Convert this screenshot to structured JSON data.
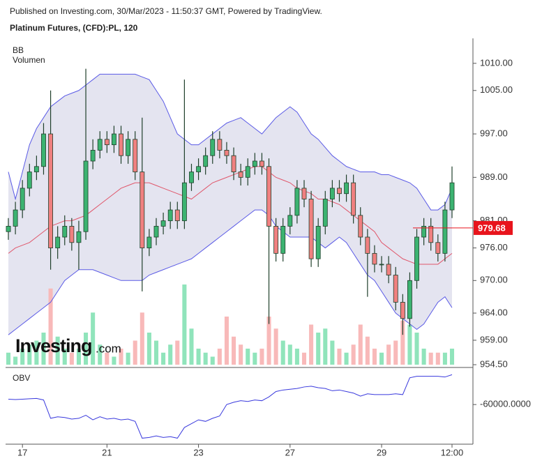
{
  "header": {
    "published": "Published on Investing.com, 30/Mar/2023 - 11:50:37 GMT, Powered by TradingView.",
    "symbol": "Platinum Futures, (CFD):PL, 120",
    "logo": "Investing",
    "logo_suffix": ".com"
  },
  "chart_data": [
    {
      "type": "candlestick",
      "indicator_labels": [
        "BB",
        "Volumen"
      ],
      "categories": [
        null,
        null,
        "17",
        null,
        null,
        null,
        null,
        null,
        null,
        null,
        null,
        null,
        null,
        null,
        "21",
        null,
        null,
        null,
        null,
        null,
        null,
        null,
        null,
        null,
        null,
        null,
        null,
        "23",
        null,
        null,
        null,
        null,
        null,
        null,
        null,
        null,
        null,
        null,
        null,
        null,
        "27",
        null,
        null,
        null,
        null,
        null,
        null,
        null,
        null,
        null,
        null,
        null,
        null,
        "29",
        null,
        null,
        null,
        null,
        null,
        null,
        null,
        null,
        null,
        "12:00"
      ],
      "open": [
        979,
        980,
        983,
        987,
        990,
        991,
        997,
        976,
        978,
        980,
        977,
        979,
        992,
        994,
        996,
        995,
        997,
        993,
        996,
        990,
        976,
        978,
        980,
        981,
        983,
        981,
        988,
        990,
        991,
        993,
        996,
        994,
        993,
        990,
        989,
        991,
        992,
        991,
        980,
        975,
        980,
        982,
        987,
        985,
        974,
        980,
        985,
        987,
        986,
        988,
        982,
        978,
        975,
        973,
        973,
        971,
        966,
        963,
        970,
        978,
        980,
        977,
        975,
        983
      ],
      "high": [
        981.5,
        984.5,
        988.5,
        991.5,
        993,
        999,
        1005,
        980,
        982,
        981.5,
        981,
        1009,
        996,
        997.5,
        997.5,
        998.5,
        998.5,
        997.5,
        997.5,
        1000,
        979.5,
        981.5,
        982.5,
        984.5,
        984.5,
        1007,
        991.5,
        992.5,
        994.5,
        997.5,
        997.5,
        995.5,
        994.5,
        991.5,
        992.5,
        993.5,
        993.5,
        992.5,
        981.5,
        981.5,
        983.5,
        988.5,
        988.5,
        986.5,
        981.5,
        986.5,
        988.5,
        988.5,
        989.5,
        989.5,
        983.5,
        979.5,
        976.5,
        974.5,
        974.5,
        972.5,
        967.5,
        971.5,
        979.5,
        981.5,
        981.5,
        978.5,
        984.5,
        991
      ],
      "low": [
        977.5,
        978.5,
        981.5,
        985.5,
        988.5,
        989.5,
        972,
        974,
        976.5,
        975.5,
        972,
        977.5,
        990.5,
        992.5,
        993.5,
        993.5,
        991.5,
        991.5,
        988.5,
        968,
        974.5,
        976.5,
        978.5,
        979.5,
        979.5,
        979.5,
        986.5,
        988.5,
        989.5,
        991.5,
        992.5,
        991.5,
        988.5,
        987.5,
        987.5,
        989.5,
        989.5,
        962,
        973.5,
        973.5,
        978.5,
        980.5,
        983.5,
        972.5,
        972.5,
        978.5,
        983.5,
        984.5,
        984.5,
        980.5,
        976.5,
        967,
        971.5,
        971.5,
        969.5,
        964.5,
        960,
        961.5,
        968.5,
        976.5,
        975.5,
        973.5,
        973.5,
        981.5
      ],
      "close": [
        980,
        983,
        987,
        990,
        991,
        997,
        976,
        978,
        980,
        977,
        979,
        992,
        994,
        996,
        995,
        997,
        993,
        996,
        990,
        976,
        978,
        980,
        981,
        983,
        981,
        988,
        990,
        991,
        993,
        996,
        994,
        993,
        990,
        989,
        991,
        992,
        991,
        980,
        975,
        980,
        982,
        987,
        985,
        974,
        980,
        985,
        987,
        986,
        988,
        982,
        978,
        975,
        973,
        973,
        971,
        966,
        963,
        970,
        978,
        980,
        977,
        975,
        983,
        988
      ],
      "volume": [
        15,
        10,
        20,
        25,
        30,
        40,
        95,
        35,
        20,
        15,
        20,
        40,
        65,
        25,
        15,
        10,
        20,
        15,
        30,
        65,
        40,
        30,
        15,
        25,
        30,
        100,
        45,
        20,
        15,
        10,
        20,
        60,
        35,
        25,
        20,
        15,
        20,
        60,
        45,
        30,
        25,
        20,
        15,
        50,
        40,
        45,
        30,
        20,
        15,
        25,
        50,
        35,
        20,
        15,
        25,
        30,
        55,
        50,
        40,
        20,
        15,
        15,
        15,
        20
      ],
      "bb_upper": [
        990,
        985,
        990,
        995,
        998,
        1000,
        1002,
        1003,
        1004,
        1004.5,
        1005,
        1006,
        1007,
        1008,
        1008,
        1008,
        1008,
        1008,
        1008,
        1007.5,
        1007,
        1005,
        1003,
        1000,
        997,
        996,
        995,
        995,
        996,
        997,
        998,
        999,
        999.5,
        1000,
        999,
        998,
        997,
        998.5,
        1000,
        1001,
        1002,
        1001,
        999,
        997,
        996,
        994.5,
        993,
        992,
        991,
        990.5,
        990,
        990,
        990,
        989.5,
        989.5,
        989,
        988.5,
        988,
        987,
        985,
        983,
        983,
        984,
        987
      ],
      "bb_middle": [
        975,
        976,
        976.5,
        977,
        978,
        979,
        980,
        980.5,
        981,
        981,
        981.5,
        982,
        983,
        984,
        985,
        986,
        987,
        987.5,
        988,
        988,
        988,
        987.5,
        987,
        986.5,
        986,
        985.5,
        985,
        986,
        987,
        988,
        988.5,
        989,
        989.5,
        990,
        990.5,
        991,
        991,
        990,
        989,
        988.5,
        988,
        987,
        986.5,
        986,
        985,
        985,
        984.5,
        984,
        983,
        982,
        981,
        980,
        979,
        977,
        976,
        975,
        974,
        973.5,
        973,
        973,
        973,
        973,
        974,
        975
      ],
      "bb_lower": [
        960,
        961,
        962,
        963,
        964,
        965,
        966,
        968,
        970,
        971,
        972,
        972,
        972,
        971.5,
        971,
        970.5,
        970,
        970,
        970,
        970,
        971,
        971.5,
        972,
        972.5,
        973,
        973.5,
        974,
        975,
        976,
        977,
        978,
        979,
        980,
        981,
        982,
        983,
        983,
        982,
        980,
        979,
        978,
        978,
        978,
        978,
        977,
        976,
        977,
        978,
        977,
        975,
        973,
        971,
        970,
        968,
        966,
        964,
        963,
        962,
        961,
        962,
        964,
        966,
        967,
        965
      ],
      "last_price": 979.68,
      "ylim": [
        954.5,
        1014.6
      ],
      "yticks": [
        {
          "value": 1010,
          "label": "1010.00"
        },
        {
          "value": 1005,
          "label": "1005.00"
        },
        {
          "value": 997,
          "label": "997.00"
        },
        {
          "value": 989,
          "label": "989.00"
        },
        {
          "value": 981,
          "label": "981.00"
        },
        {
          "value": 976,
          "label": "976.00"
        },
        {
          "value": 970,
          "label": "970.00"
        },
        {
          "value": 964,
          "label": "964.00"
        },
        {
          "value": 959,
          "label": "959.00"
        },
        {
          "value": 954.5,
          "label": "954.50"
        }
      ],
      "colors": {
        "up": "#3cb371",
        "down": "#f08080",
        "wick": "#1f3f2a",
        "volume_up": "#90e4bb",
        "volume_down": "#f8b9b9",
        "band": "#5a5ae6",
        "band_fill": "#e4e4f0",
        "middle": "#e0566a",
        "last": "#e8141c"
      }
    },
    {
      "type": "line",
      "title": "OBV",
      "values": [
        -53000,
        -53500,
        -53000,
        -52500,
        -52000,
        -54000,
        -78000,
        -76000,
        -77000,
        -79000,
        -78000,
        -74000,
        -80000,
        -76000,
        -79000,
        -78000,
        -80000,
        -79000,
        -82000,
        -104000,
        -103000,
        -101000,
        -103000,
        -102000,
        -104000,
        -90000,
        -85000,
        -80000,
        -82000,
        -78000,
        -75000,
        -60000,
        -57000,
        -55000,
        -56000,
        -54000,
        -55000,
        -50000,
        -43000,
        -41000,
        -40000,
        -39000,
        -37000,
        -36000,
        -38000,
        -39000,
        -42000,
        -41000,
        -43000,
        -45000,
        -49000,
        -46000,
        -47000,
        -47000,
        -47000,
        -46000,
        -47000,
        -25000,
        -23000,
        -23000,
        -23000,
        -23000,
        -24000,
        -21000
      ],
      "color": "#3838dd",
      "ylim": [
        -110000,
        -17000
      ],
      "yticks": [
        {
          "value": -60000,
          "label": "-60000.0000"
        }
      ]
    }
  ]
}
